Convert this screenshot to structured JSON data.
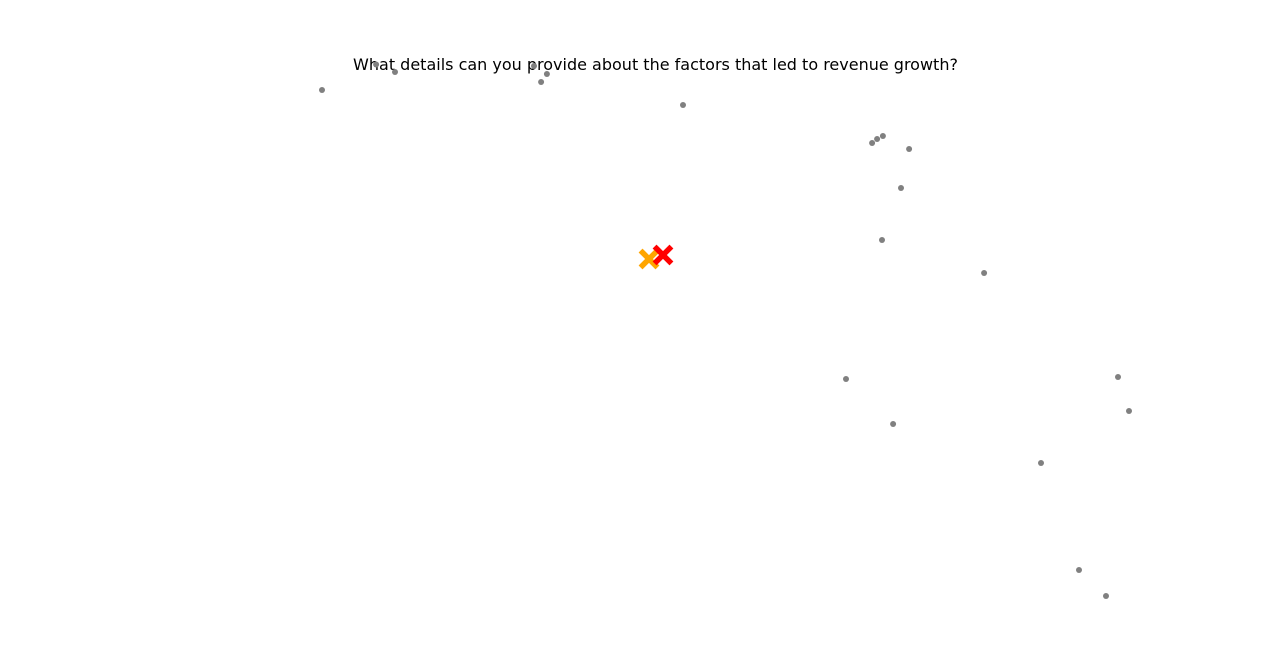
{
  "chart_data": {
    "type": "scatter",
    "title": "What details can you provide about the factors that led to revenue growth?",
    "xlabel": "",
    "ylabel": "",
    "xlim": [
      0,
      1
    ],
    "ylim": [
      0,
      1
    ],
    "grid": false,
    "axes_visible": false,
    "series": [
      {
        "marker": "dot",
        "color": "#808080",
        "points": [
          {
            "x": 0.2516,
            "y": 0.8636
          },
          {
            "x": 0.2938,
            "y": 0.9023
          },
          {
            "x": 0.3086,
            "y": 0.8909
          },
          {
            "x": 0.4172,
            "y": 0.9
          },
          {
            "x": 0.4273,
            "y": 0.8879
          },
          {
            "x": 0.4227,
            "y": 0.8758
          },
          {
            "x": 0.5336,
            "y": 0.8409
          },
          {
            "x": 0.6813,
            "y": 0.7833
          },
          {
            "x": 0.6852,
            "y": 0.7894
          },
          {
            "x": 0.6898,
            "y": 0.7939
          },
          {
            "x": 0.7102,
            "y": 0.7742
          },
          {
            "x": 0.7039,
            "y": 0.7152
          },
          {
            "x": 0.6891,
            "y": 0.6364
          },
          {
            "x": 0.7688,
            "y": 0.5864
          },
          {
            "x": 0.6609,
            "y": 0.4258
          },
          {
            "x": 0.6977,
            "y": 0.3576
          },
          {
            "x": 0.8734,
            "y": 0.4288
          },
          {
            "x": 0.882,
            "y": 0.3773
          },
          {
            "x": 0.8133,
            "y": 0.2985
          },
          {
            "x": 0.843,
            "y": 0.1364
          },
          {
            "x": 0.8641,
            "y": 0.097
          }
        ]
      },
      {
        "marker": "x",
        "color": "#FFA500",
        "points": [
          {
            "x": 0.507,
            "y": 0.6076
          }
        ]
      },
      {
        "marker": "x",
        "color": "#FF0000",
        "points": [
          {
            "x": 0.518,
            "y": 0.6136
          }
        ]
      }
    ]
  }
}
